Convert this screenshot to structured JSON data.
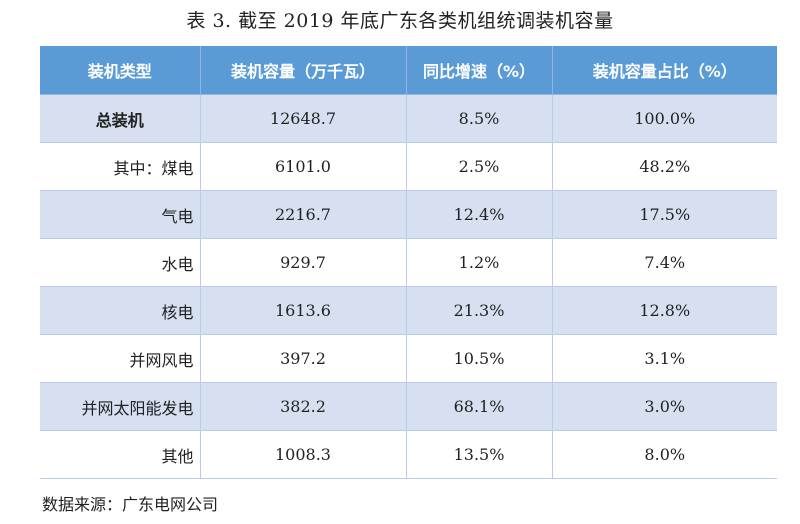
{
  "caption": "表 3. 截至 2019 年底广东各类机组统调装机容量",
  "table": {
    "headers": [
      "装机类型",
      "装机容量（万千瓦）",
      "同比增速（%）",
      "装机容量占比（%）"
    ],
    "rows": [
      [
        "总装机",
        "12648.7",
        "8.5%",
        "100.0%"
      ],
      [
        "其中：煤电",
        "6101.0",
        "2.5%",
        "48.2%"
      ],
      [
        "气电",
        "2216.7",
        "12.4%",
        "17.5%"
      ],
      [
        "水电",
        "929.7",
        "1.2%",
        "7.4%"
      ],
      [
        "核电",
        "1613.6",
        "21.3%",
        "12.8%"
      ],
      [
        "并网风电",
        "397.2",
        "10.5%",
        "3.1%"
      ],
      [
        "并网太阳能发电",
        "382.2",
        "68.1%",
        "3.0%"
      ],
      [
        "其他",
        "1008.3",
        "13.5%",
        "8.0%"
      ]
    ]
  },
  "source": "数据来源：广东电网公司",
  "colors": {
    "header_bg": "#5b9bd5",
    "header_text": "#ffffff",
    "row_shade": "#d6e0f1",
    "row_plain": "#ffffff"
  }
}
